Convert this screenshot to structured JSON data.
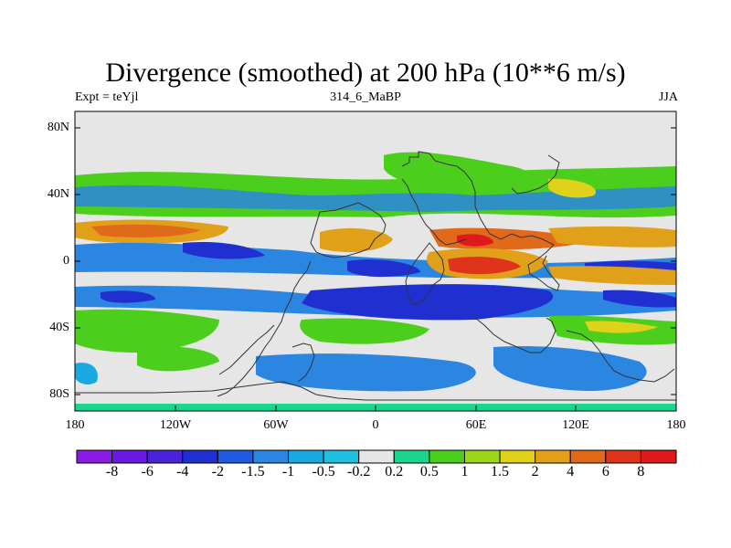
{
  "map": {
    "title": "Divergence (smoothed) at 200 hPa (10**6 m/s)",
    "left_label": "Expt = teYjl",
    "center_label": "314_6_MaBP",
    "right_label": "JJA",
    "lat_ticks": [
      "80N",
      "40N",
      "0",
      "40S",
      "80S"
    ],
    "lon_ticks": [
      "180",
      "120W",
      "60W",
      "0",
      "60E",
      "120E",
      "180"
    ],
    "colorbar": {
      "labels": [
        "-8",
        "-6",
        "-4",
        "-2",
        "-1.5",
        "-1",
        "-0.5",
        "-0.2",
        "0.2",
        "0.5",
        "1",
        "1.5",
        "2",
        "4",
        "6",
        "8"
      ],
      "colors": [
        "#8b1ae5",
        "#6a1ae0",
        "#4a22d8",
        "#1f2fd0",
        "#1f5be0",
        "#2a86e0",
        "#1aa8e0",
        "#20c0e0",
        "#e6e6e6",
        "#1ad68a",
        "#4ccf1c",
        "#9bd81a",
        "#e0d21a",
        "#e0a01a",
        "#e06a1a",
        "#e0341a",
        "#e01a1a"
      ]
    }
  }
}
